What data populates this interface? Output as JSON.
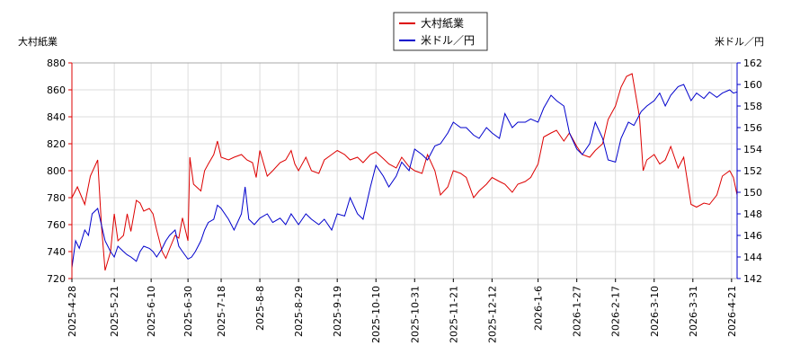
{
  "chart_data": {
    "type": "line",
    "legend_placement": "top-center",
    "grid": true,
    "left_axis": {
      "label": "大村紙業",
      "ylim": [
        720,
        880
      ],
      "ticks": [
        720,
        740,
        760,
        780,
        800,
        820,
        840,
        860,
        880
      ]
    },
    "right_axis": {
      "label": "米ドル／円",
      "ylim": [
        142,
        162
      ],
      "ticks": [
        142,
        144,
        146,
        148,
        150,
        152,
        154,
        156,
        158,
        160,
        162
      ]
    },
    "x": {
      "start": "2025-04-28",
      "end": "2026-04-24",
      "ticks": [
        "2025-4-28",
        "2025-5-21",
        "2025-6-10",
        "2025-6-30",
        "2025-7-18",
        "2025-8-8",
        "2025-8-29",
        "2025-9-19",
        "2025-10-10",
        "2025-10-31",
        "2025-11-21",
        "2025-12-12",
        "2026-1-6",
        "2026-1-27",
        "2026-2-17",
        "2026-3-10",
        "2026-3-31",
        "2026-4-21"
      ]
    },
    "series": [
      {
        "name": "大村紙業",
        "axis": "left",
        "color": "#dd0000",
        "points": [
          [
            "2025-04-28",
            780
          ],
          [
            "2025-05-01",
            788
          ],
          [
            "2025-05-05",
            775
          ],
          [
            "2025-05-08",
            796
          ],
          [
            "2025-05-12",
            808
          ],
          [
            "2025-05-14",
            760
          ],
          [
            "2025-05-16",
            726
          ],
          [
            "2025-05-19",
            740
          ],
          [
            "2025-05-21",
            768
          ],
          [
            "2025-05-23",
            748
          ],
          [
            "2025-05-26",
            752
          ],
          [
            "2025-05-28",
            768
          ],
          [
            "2025-05-30",
            755
          ],
          [
            "2025-06-02",
            778
          ],
          [
            "2025-06-04",
            776
          ],
          [
            "2025-06-06",
            770
          ],
          [
            "2025-06-09",
            772
          ],
          [
            "2025-06-11",
            768
          ],
          [
            "2025-06-13",
            756
          ],
          [
            "2025-06-16",
            740
          ],
          [
            "2025-06-18",
            735
          ],
          [
            "2025-06-20",
            742
          ],
          [
            "2025-06-23",
            752
          ],
          [
            "2025-06-25",
            750
          ],
          [
            "2025-06-27",
            765
          ],
          [
            "2025-06-30",
            748
          ],
          [
            "2025-07-01",
            810
          ],
          [
            "2025-07-03",
            790
          ],
          [
            "2025-07-07",
            785
          ],
          [
            "2025-07-09",
            800
          ],
          [
            "2025-07-11",
            805
          ],
          [
            "2025-07-14",
            812
          ],
          [
            "2025-07-16",
            822
          ],
          [
            "2025-07-18",
            810
          ],
          [
            "2025-07-22",
            808
          ],
          [
            "2025-07-25",
            810
          ],
          [
            "2025-07-29",
            812
          ],
          [
            "2025-08-01",
            808
          ],
          [
            "2025-08-04",
            806
          ],
          [
            "2025-08-06",
            795
          ],
          [
            "2025-08-08",
            815
          ],
          [
            "2025-08-12",
            796
          ],
          [
            "2025-08-15",
            800
          ],
          [
            "2025-08-19",
            806
          ],
          [
            "2025-08-22",
            808
          ],
          [
            "2025-08-25",
            815
          ],
          [
            "2025-08-27",
            805
          ],
          [
            "2025-08-29",
            800
          ],
          [
            "2025-09-02",
            810
          ],
          [
            "2025-09-05",
            800
          ],
          [
            "2025-09-09",
            798
          ],
          [
            "2025-09-12",
            808
          ],
          [
            "2025-09-16",
            812
          ],
          [
            "2025-09-19",
            815
          ],
          [
            "2025-09-23",
            812
          ],
          [
            "2025-09-26",
            808
          ],
          [
            "2025-09-30",
            810
          ],
          [
            "2025-10-03",
            806
          ],
          [
            "2025-10-07",
            812
          ],
          [
            "2025-10-10",
            814
          ],
          [
            "2025-10-14",
            809
          ],
          [
            "2025-10-17",
            805
          ],
          [
            "2025-10-21",
            802
          ],
          [
            "2025-10-24",
            810
          ],
          [
            "2025-10-28",
            803
          ],
          [
            "2025-10-31",
            800
          ],
          [
            "2025-11-04",
            798
          ],
          [
            "2025-11-07",
            812
          ],
          [
            "2025-11-11",
            800
          ],
          [
            "2025-11-14",
            782
          ],
          [
            "2025-11-18",
            788
          ],
          [
            "2025-11-21",
            800
          ],
          [
            "2025-11-25",
            798
          ],
          [
            "2025-11-28",
            795
          ],
          [
            "2025-12-02",
            780
          ],
          [
            "2025-12-05",
            785
          ],
          [
            "2025-12-09",
            790
          ],
          [
            "2025-12-12",
            795
          ],
          [
            "2025-12-16",
            792
          ],
          [
            "2025-12-19",
            790
          ],
          [
            "2025-12-23",
            784
          ],
          [
            "2025-12-26",
            790
          ],
          [
            "2025-12-30",
            792
          ],
          [
            "2026-01-02",
            795
          ],
          [
            "2026-01-06",
            805
          ],
          [
            "2026-01-09",
            825
          ],
          [
            "2026-01-13",
            828
          ],
          [
            "2026-01-16",
            830
          ],
          [
            "2026-01-20",
            822
          ],
          [
            "2026-01-23",
            828
          ],
          [
            "2026-01-27",
            818
          ],
          [
            "2026-01-30",
            812
          ],
          [
            "2026-02-03",
            810
          ],
          [
            "2026-02-06",
            815
          ],
          [
            "2026-02-10",
            820
          ],
          [
            "2026-02-13",
            838
          ],
          [
            "2026-02-17",
            848
          ],
          [
            "2026-02-20",
            862
          ],
          [
            "2026-02-23",
            870
          ],
          [
            "2026-02-26",
            872
          ],
          [
            "2026-03-02",
            840
          ],
          [
            "2026-03-04",
            800
          ],
          [
            "2026-03-06",
            808
          ],
          [
            "2026-03-10",
            812
          ],
          [
            "2026-03-13",
            805
          ],
          [
            "2026-03-16",
            808
          ],
          [
            "2026-03-19",
            818
          ],
          [
            "2026-03-23",
            802
          ],
          [
            "2026-03-26",
            810
          ],
          [
            "2026-03-30",
            775
          ],
          [
            "2026-04-02",
            773
          ],
          [
            "2026-04-06",
            776
          ],
          [
            "2026-04-09",
            775
          ],
          [
            "2026-04-13",
            782
          ],
          [
            "2026-04-16",
            796
          ],
          [
            "2026-04-20",
            800
          ],
          [
            "2026-04-22",
            795
          ],
          [
            "2026-04-24",
            782
          ]
        ]
      },
      {
        "name": "米ドル／円",
        "axis": "right",
        "color": "#0000cc",
        "points": [
          [
            "2025-04-28",
            143.0
          ],
          [
            "2025-04-30",
            145.5
          ],
          [
            "2025-05-02",
            144.8
          ],
          [
            "2025-05-05",
            146.5
          ],
          [
            "2025-05-07",
            146.0
          ],
          [
            "2025-05-09",
            148.0
          ],
          [
            "2025-05-12",
            148.5
          ],
          [
            "2025-05-14",
            147.0
          ],
          [
            "2025-05-16",
            145.5
          ],
          [
            "2025-05-19",
            144.5
          ],
          [
            "2025-05-21",
            144.0
          ],
          [
            "2025-05-23",
            145.0
          ],
          [
            "2025-05-26",
            144.5
          ],
          [
            "2025-05-28",
            144.2
          ],
          [
            "2025-05-30",
            144.0
          ],
          [
            "2025-06-02",
            143.6
          ],
          [
            "2025-06-04",
            144.5
          ],
          [
            "2025-06-06",
            145.0
          ],
          [
            "2025-06-09",
            144.8
          ],
          [
            "2025-06-11",
            144.5
          ],
          [
            "2025-06-13",
            144.0
          ],
          [
            "2025-06-16",
            144.8
          ],
          [
            "2025-06-18",
            145.5
          ],
          [
            "2025-06-20",
            146.0
          ],
          [
            "2025-06-23",
            146.5
          ],
          [
            "2025-06-25",
            145.0
          ],
          [
            "2025-06-27",
            144.5
          ],
          [
            "2025-06-30",
            143.8
          ],
          [
            "2025-07-02",
            144.0
          ],
          [
            "2025-07-04",
            144.5
          ],
          [
            "2025-07-07",
            145.5
          ],
          [
            "2025-07-09",
            146.5
          ],
          [
            "2025-07-11",
            147.2
          ],
          [
            "2025-07-14",
            147.5
          ],
          [
            "2025-07-16",
            148.8
          ],
          [
            "2025-07-18",
            148.5
          ],
          [
            "2025-07-22",
            147.5
          ],
          [
            "2025-07-25",
            146.5
          ],
          [
            "2025-07-29",
            148.0
          ],
          [
            "2025-07-31",
            150.5
          ],
          [
            "2025-08-02",
            147.5
          ],
          [
            "2025-08-05",
            147.0
          ],
          [
            "2025-08-08",
            147.6
          ],
          [
            "2025-08-12",
            148.0
          ],
          [
            "2025-08-15",
            147.2
          ],
          [
            "2025-08-19",
            147.6
          ],
          [
            "2025-08-22",
            147.0
          ],
          [
            "2025-08-25",
            148.0
          ],
          [
            "2025-08-29",
            147.0
          ],
          [
            "2025-09-02",
            148.0
          ],
          [
            "2025-09-05",
            147.5
          ],
          [
            "2025-09-09",
            147.0
          ],
          [
            "2025-09-12",
            147.5
          ],
          [
            "2025-09-16",
            146.5
          ],
          [
            "2025-09-19",
            148.0
          ],
          [
            "2025-09-23",
            147.8
          ],
          [
            "2025-09-26",
            149.5
          ],
          [
            "2025-09-30",
            148.0
          ],
          [
            "2025-10-03",
            147.5
          ],
          [
            "2025-10-07",
            150.5
          ],
          [
            "2025-10-10",
            152.5
          ],
          [
            "2025-10-14",
            151.5
          ],
          [
            "2025-10-17",
            150.5
          ],
          [
            "2025-10-21",
            151.5
          ],
          [
            "2025-10-24",
            152.8
          ],
          [
            "2025-10-28",
            152.0
          ],
          [
            "2025-10-31",
            154.0
          ],
          [
            "2025-11-04",
            153.5
          ],
          [
            "2025-11-07",
            153.0
          ],
          [
            "2025-11-11",
            154.3
          ],
          [
            "2025-11-14",
            154.5
          ],
          [
            "2025-11-18",
            155.5
          ],
          [
            "2025-11-21",
            156.5
          ],
          [
            "2025-11-25",
            156.0
          ],
          [
            "2025-11-28",
            156.0
          ],
          [
            "2025-12-02",
            155.3
          ],
          [
            "2025-12-05",
            155.0
          ],
          [
            "2025-12-09",
            156.0
          ],
          [
            "2025-12-12",
            155.5
          ],
          [
            "2025-12-16",
            155.0
          ],
          [
            "2025-12-19",
            157.3
          ],
          [
            "2025-12-23",
            156.0
          ],
          [
            "2025-12-26",
            156.5
          ],
          [
            "2025-12-30",
            156.5
          ],
          [
            "2026-01-02",
            156.8
          ],
          [
            "2026-01-06",
            156.5
          ],
          [
            "2026-01-09",
            157.8
          ],
          [
            "2026-01-13",
            159.0
          ],
          [
            "2026-01-16",
            158.5
          ],
          [
            "2026-01-20",
            158.0
          ],
          [
            "2026-01-23",
            155.5
          ],
          [
            "2026-01-27",
            154.0
          ],
          [
            "2026-01-30",
            153.5
          ],
          [
            "2026-02-03",
            154.5
          ],
          [
            "2026-02-06",
            156.5
          ],
          [
            "2026-02-10",
            155.0
          ],
          [
            "2026-02-13",
            153.0
          ],
          [
            "2026-02-17",
            152.8
          ],
          [
            "2026-02-20",
            155.0
          ],
          [
            "2026-02-24",
            156.5
          ],
          [
            "2026-02-27",
            156.2
          ],
          [
            "2026-03-03",
            157.5
          ],
          [
            "2026-03-06",
            158.0
          ],
          [
            "2026-03-10",
            158.5
          ],
          [
            "2026-03-13",
            159.2
          ],
          [
            "2026-03-16",
            158.0
          ],
          [
            "2026-03-19",
            159.0
          ],
          [
            "2026-03-23",
            159.8
          ],
          [
            "2026-03-26",
            160.0
          ],
          [
            "2026-03-30",
            158.5
          ],
          [
            "2026-04-02",
            159.2
          ],
          [
            "2026-04-06",
            158.7
          ],
          [
            "2026-04-09",
            159.3
          ],
          [
            "2026-04-13",
            158.8
          ],
          [
            "2026-04-16",
            159.2
          ],
          [
            "2026-04-20",
            159.5
          ],
          [
            "2026-04-22",
            159.2
          ],
          [
            "2026-04-24",
            159.3
          ]
        ]
      }
    ]
  }
}
